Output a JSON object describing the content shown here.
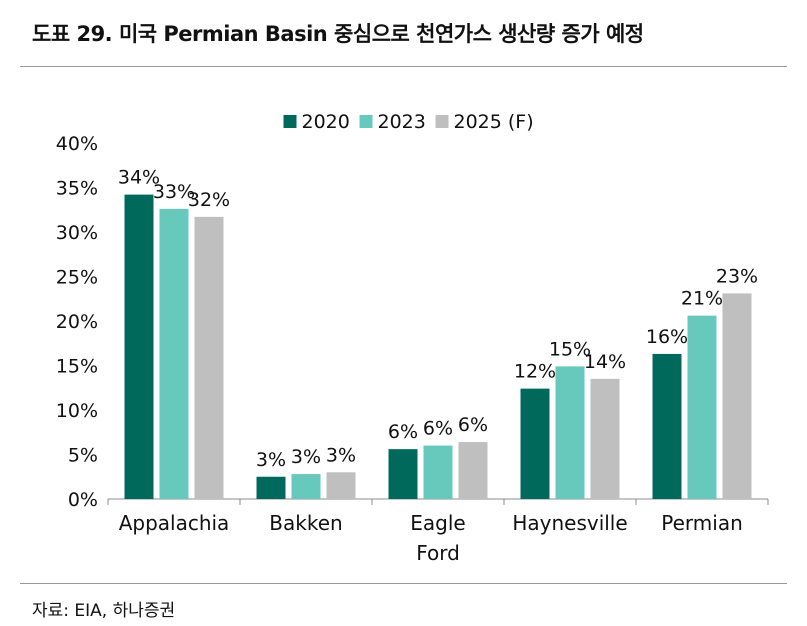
{
  "figure": {
    "title": "도표 29. 미국 Permian Basin 중심으로 천연가스 생산량 증가 예정",
    "source": "자료: EIA, 하나증권"
  },
  "chart_data": {
    "type": "bar",
    "categories": [
      "Appalachia",
      "Bakken",
      "Eagle\nFord",
      "Haynesville",
      "Permian"
    ],
    "series": [
      {
        "name": "2020",
        "color": "#00695c",
        "values": [
          34.2,
          2.5,
          5.6,
          12.4,
          16.3
        ],
        "labels": [
          "34%",
          "3%",
          "6%",
          "12%",
          "16%"
        ]
      },
      {
        "name": "2023",
        "color": "#66c9bb",
        "values": [
          32.6,
          2.8,
          6.0,
          14.9,
          20.6
        ],
        "labels": [
          "33%",
          "3%",
          "6%",
          "15%",
          "21%"
        ]
      },
      {
        "name": "2025 (F)",
        "color": "#bfbfbf",
        "values": [
          31.7,
          3.0,
          6.4,
          13.5,
          23.1
        ],
        "labels": [
          "32%",
          "3%",
          "6%",
          "14%",
          "23%"
        ]
      }
    ],
    "ylim": [
      0,
      40
    ],
    "yticks": [
      "0%",
      "5%",
      "10%",
      "15%",
      "20%",
      "25%",
      "30%",
      "35%",
      "40%"
    ],
    "legend": "top-center",
    "grid": false
  }
}
